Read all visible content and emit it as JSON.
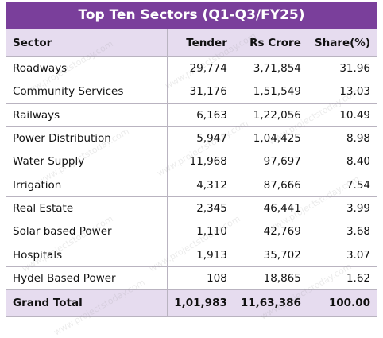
{
  "title": "Top Ten Sectors (Q1-Q3/FY25)",
  "watermark": "www.projectstoday.com",
  "table": {
    "header": [
      "Sector",
      "Tender",
      "Rs Crore",
      "Share(%)"
    ],
    "rows": [
      [
        "Roadways",
        "29,774",
        "3,71,854",
        "31.96"
      ],
      [
        "Community Services",
        "31,176",
        "1,51,549",
        "13.03"
      ],
      [
        "Railways",
        "6,163",
        "1,22,056",
        "10.49"
      ],
      [
        "Power Distribution",
        "5,947",
        "1,04,425",
        "8.98"
      ],
      [
        "Water Supply",
        "11,968",
        "97,697",
        "8.40"
      ],
      [
        "Irrigation",
        "4,312",
        "87,666",
        "7.54"
      ],
      [
        "Real Estate",
        "2,345",
        "46,441",
        "3.99"
      ],
      [
        "Solar based Power",
        "1,110",
        "42,769",
        "3.68"
      ],
      [
        "Hospitals",
        "1,913",
        "35,702",
        "3.07"
      ],
      [
        "Hydel Based Power",
        "108",
        "18,865",
        "1.62"
      ]
    ],
    "total": [
      "Grand Total",
      "1,01,983",
      "11,63,386",
      "100.00"
    ]
  }
}
